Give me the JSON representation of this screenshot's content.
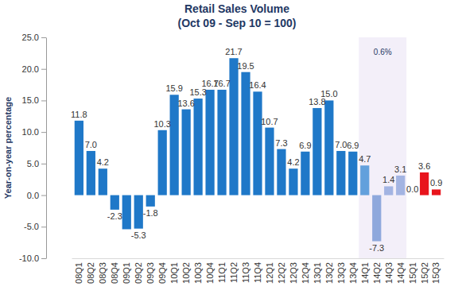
{
  "chart_data": {
    "type": "bar",
    "title": "Retail Sales Volume",
    "subtitle": "(Oct 09 - Sep 10 = 100)",
    "y_label": "Year-on-year percentage",
    "categories": [
      "08Q1",
      "08Q2",
      "08Q3",
      "08Q4",
      "09Q1",
      "09Q2",
      "09Q3",
      "09Q4",
      "10Q1",
      "10Q2",
      "10Q3",
      "10Q4",
      "11Q1",
      "11Q2",
      "11Q3",
      "11Q4",
      "12Q1",
      "12Q2",
      "12Q3",
      "12Q4",
      "13Q1",
      "13Q2",
      "13Q3",
      "13Q4",
      "14Q1",
      "14Q2",
      "14Q3",
      "14Q4",
      "15Q1",
      "15Q2",
      "15Q3"
    ],
    "values": [
      11.8,
      7.0,
      4.2,
      -2.3,
      -5.4,
      -5.3,
      -1.8,
      10.3,
      15.9,
      13.6,
      15.3,
      16.7,
      16.7,
      21.7,
      19.5,
      16.4,
      10.7,
      7.3,
      4.2,
      6.9,
      13.8,
      15.0,
      7.0,
      6.9,
      4.7,
      -7.3,
      1.4,
      3.1,
      0.0,
      3.6,
      0.9
    ],
    "value_labels": [
      "11.8",
      "7.0",
      "4.2",
      "-2.3",
      null,
      "-5.3",
      "-1.8",
      "10.3",
      "15.9",
      "13.6",
      "15.3",
      "16.7",
      "16.7",
      "21.7",
      "19.5",
      "16.4",
      "10.7",
      "7.3",
      "4.2",
      "6.9",
      "13.8",
      "15.0",
      "7.0",
      "6.9",
      "4.7",
      "-7.3",
      "1.4",
      "3.1",
      "0.0",
      "3.6",
      "0.9"
    ],
    "colors": [
      "#1f78c8",
      "#1f78c8",
      "#1f78c8",
      "#1f78c8",
      "#1f78c8",
      "#1f78c8",
      "#1f78c8",
      "#1f78c8",
      "#1f78c8",
      "#1f78c8",
      "#1f78c8",
      "#1f78c8",
      "#1f78c8",
      "#1f78c8",
      "#1f78c8",
      "#1f78c8",
      "#1f78c8",
      "#1f78c8",
      "#1f78c8",
      "#1f78c8",
      "#1f78c8",
      "#1f78c8",
      "#1f78c8",
      "#1f78c8",
      "#62a0dc",
      "#8ea8dc",
      "#a3b4e2",
      "#a3b4e2",
      "#e8141c",
      "#e8141c",
      "#e8141c"
    ],
    "ylim": [
      -10,
      25
    ],
    "yticks": [
      {
        "value": -10,
        "label": "-10.0"
      },
      {
        "value": -5,
        "label": "-5.0"
      },
      {
        "value": 0,
        "label": "0.0"
      },
      {
        "value": 5,
        "label": "5.0"
      },
      {
        "value": 10,
        "label": "10.0"
      },
      {
        "value": 15,
        "label": "15.0"
      },
      {
        "value": 20,
        "label": "20.0"
      },
      {
        "value": 25,
        "label": "25.0"
      }
    ],
    "grid": false,
    "data_labels": true,
    "annotations": [
      {
        "text": "0.6%",
        "start": "14Q1",
        "end": "14Q4"
      }
    ]
  }
}
